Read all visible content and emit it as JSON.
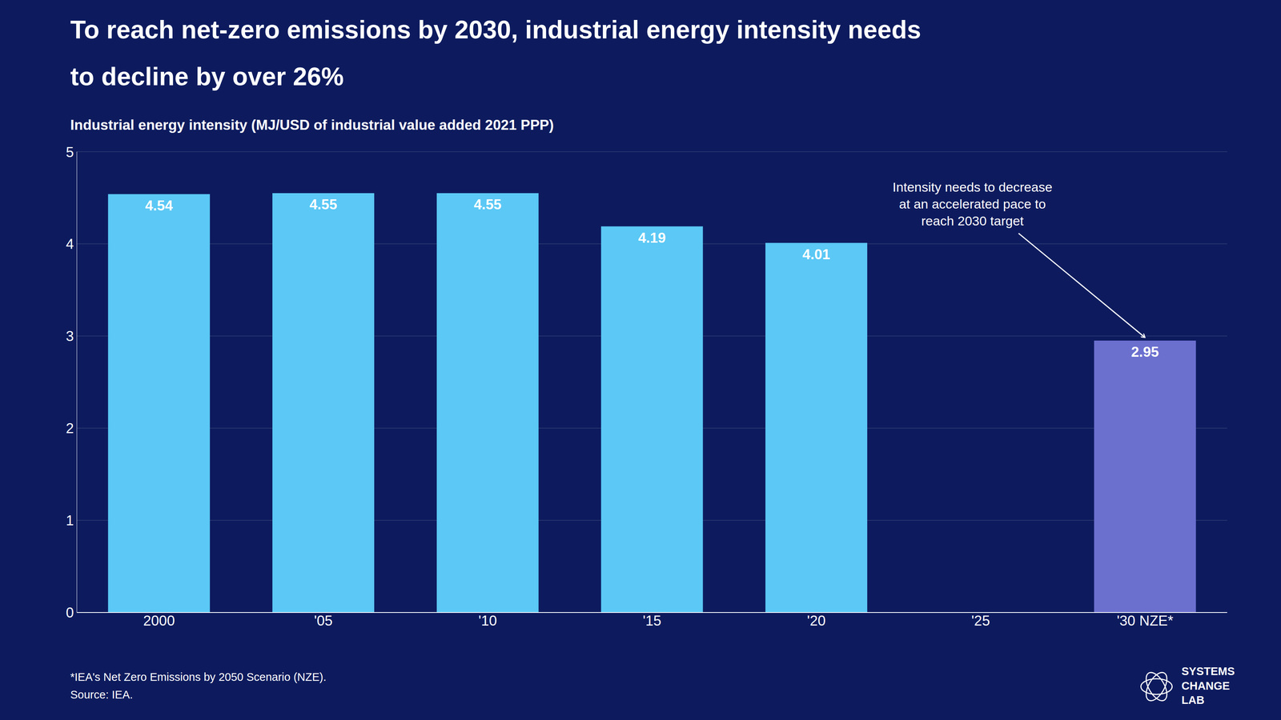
{
  "chart_data": {
    "type": "bar",
    "title": "To reach net-zero emissions by 2030, industrial energy intensity needs\nto decline by over 26%",
    "subtitle": "Industrial energy intensity (MJ/USD of industrial value added 2021 PPP)",
    "categories": [
      "2000",
      "'05",
      "'10",
      "'15",
      "'20",
      "'25",
      "'30 NZE*"
    ],
    "values": [
      4.54,
      4.55,
      4.55,
      4.19,
      4.01,
      null,
      2.95
    ],
    "colors": [
      "#5BC8F5",
      "#5BC8F5",
      "#5BC8F5",
      "#5BC8F5",
      "#5BC8F5",
      null,
      "#6B6FCE"
    ],
    "ylim": [
      0,
      5
    ],
    "yticks": [
      0,
      1,
      2,
      3,
      4,
      5
    ],
    "grid": true,
    "data_labels": true,
    "annotation": "Intensity needs to decrease\nat an accelerated pace to\nreach 2030 target",
    "footnote": "*IEA's Net Zero Emissions by 2050 Scenario (NZE).\nSource: IEA.",
    "credit": "SYSTEMS\nCHANGE\nLAB"
  }
}
